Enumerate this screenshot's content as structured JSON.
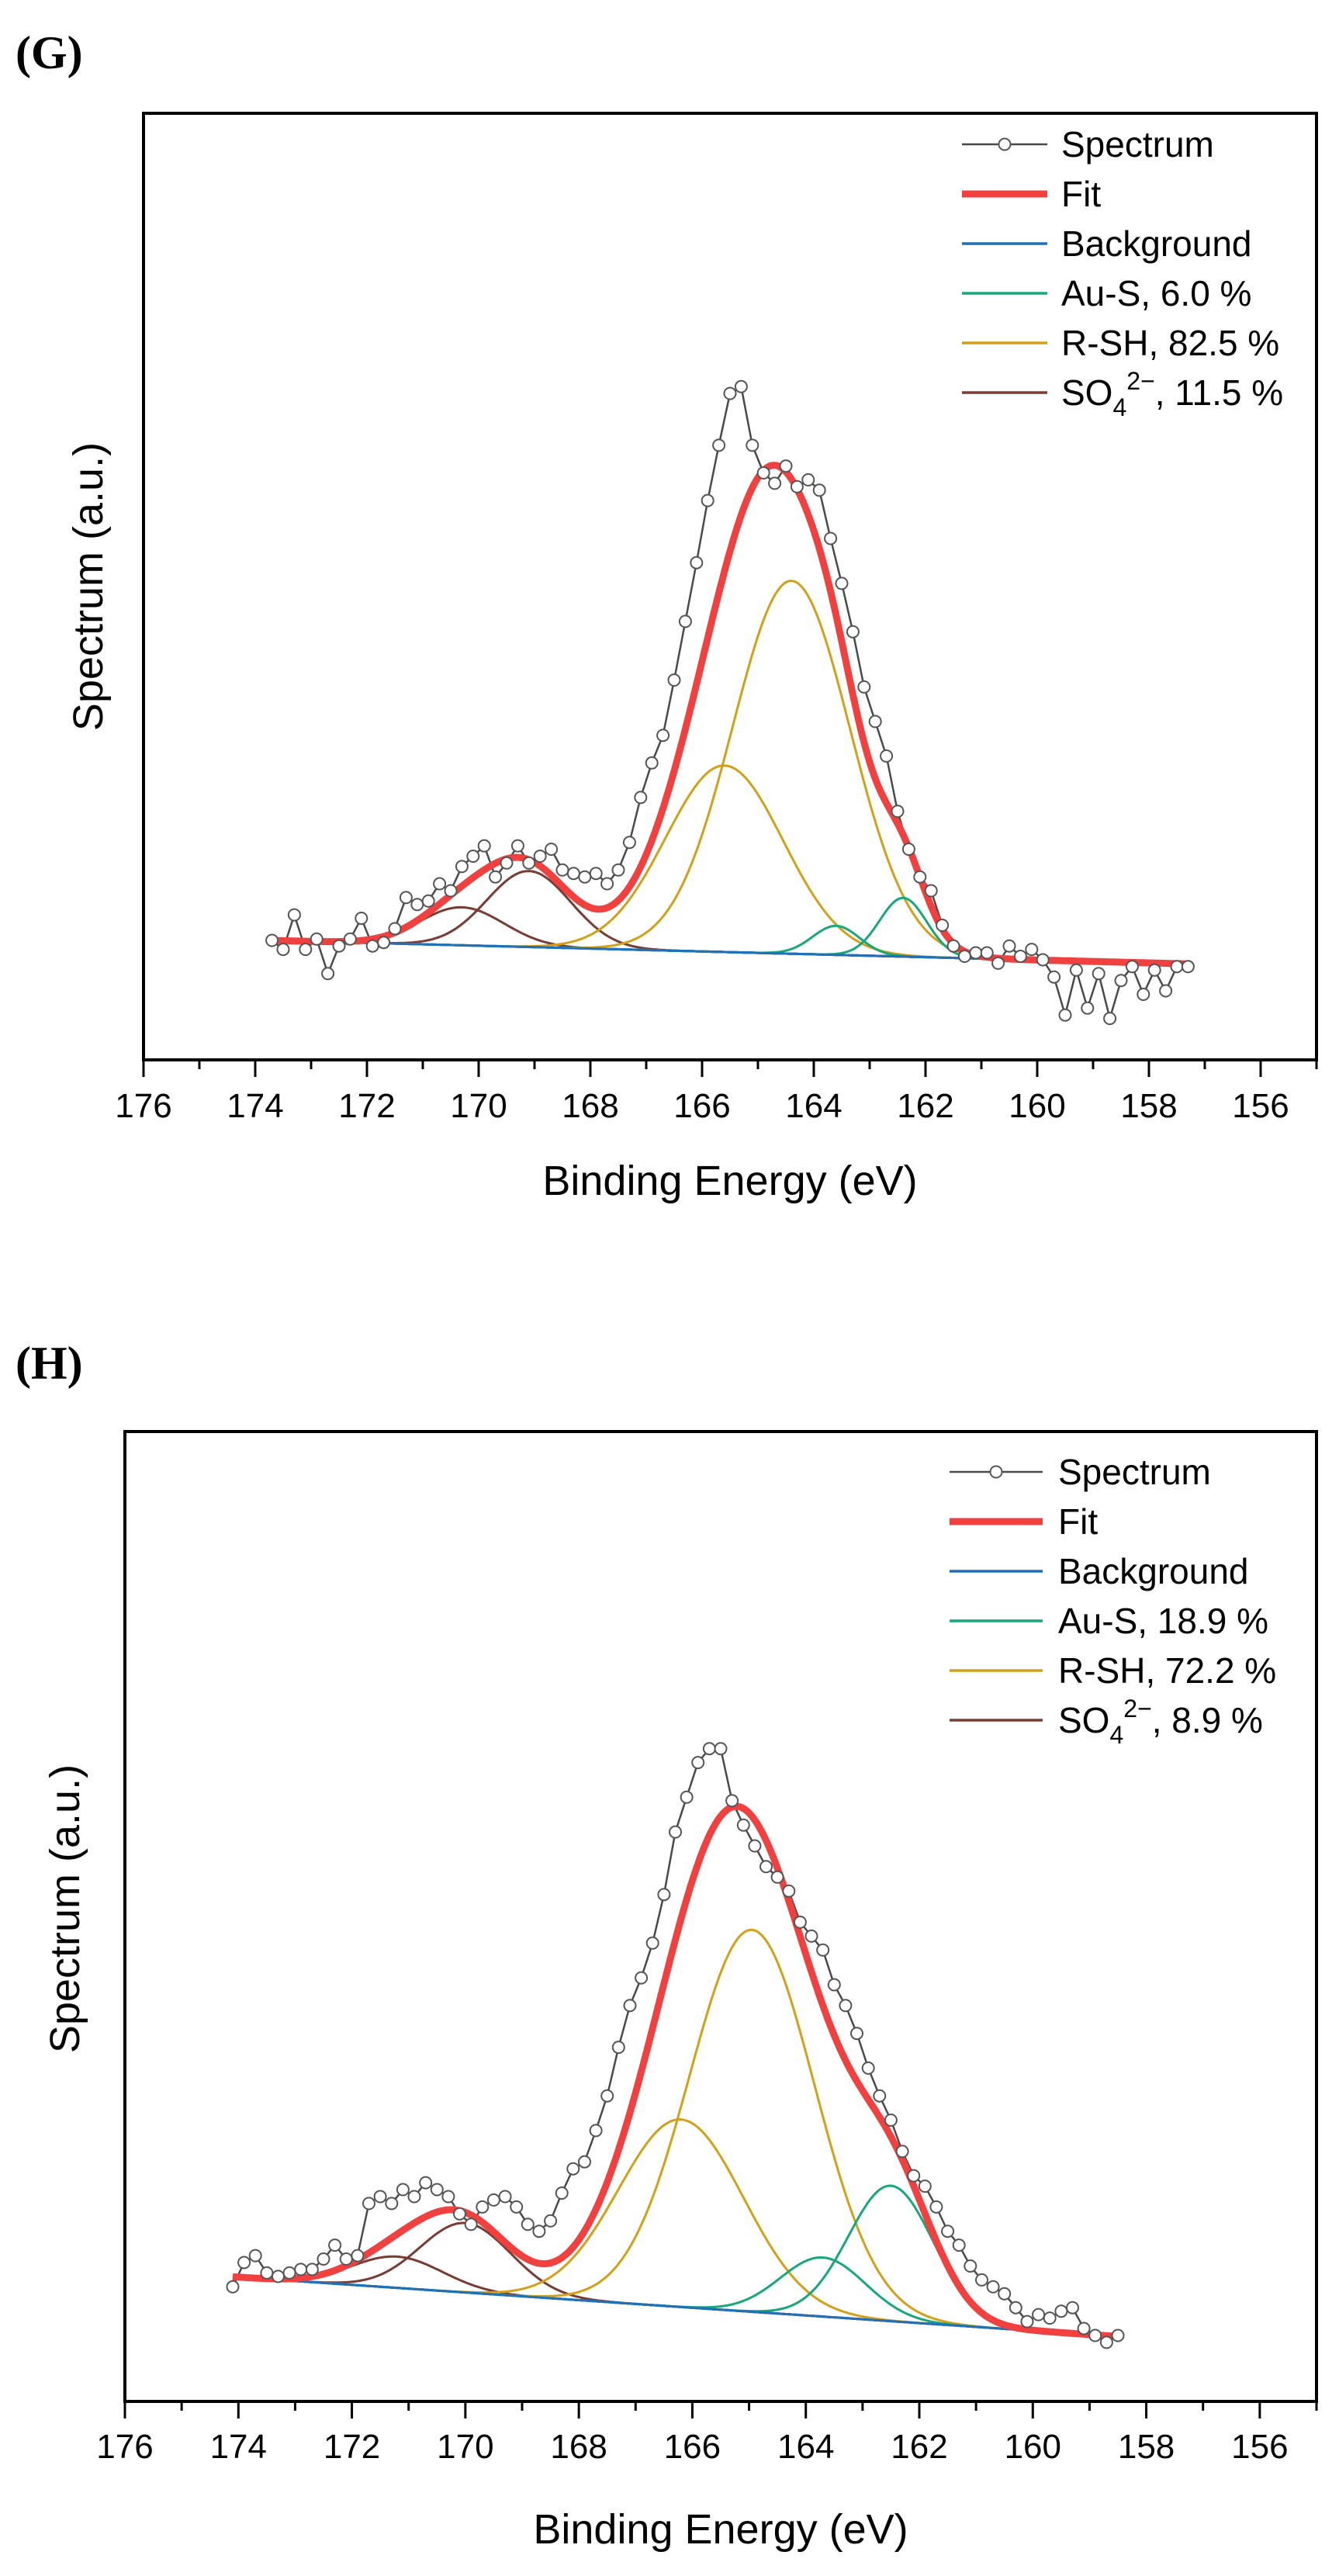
{
  "chart_data": [
    {
      "panel": "(G)",
      "type": "line",
      "xlabel": "Binding Energy (eV)",
      "ylabel": "Spectrum (a.u.)",
      "xlim": [
        176,
        155
      ],
      "ylim": [
        0,
        100
      ],
      "x_ticks": [
        176,
        174,
        172,
        170,
        168,
        166,
        164,
        162,
        160,
        158,
        156
      ],
      "legend": [
        {
          "label": "Spectrum",
          "color": "#4a4a4a",
          "style": "line-marker"
        },
        {
          "label": "Fit",
          "color": "#f04040",
          "style": "thick"
        },
        {
          "label": "Background",
          "color": "#1f6fbf",
          "style": "line"
        },
        {
          "label": "Au-S, 6.0 %",
          "color": "#16a87a",
          "style": "line"
        },
        {
          "label": "R-SH, 82.5 %",
          "color": "#d4a017",
          "style": "line"
        },
        {
          "label": "SO4 2−, 11.5 %",
          "main": "SO",
          "sub": "4",
          "sup": "2−",
          "tail": ", 11.5 %",
          "color": "#7a3b32",
          "style": "line"
        }
      ],
      "background": {
        "x": [
          173.7,
          157.3
        ],
        "y": [
          17.3,
          13.9
        ]
      },
      "components": [
        {
          "name": "Au-S 2p3/2",
          "color": "#16a87a",
          "center": 162.4,
          "amp": 8.5,
          "sigma": 0.42
        },
        {
          "name": "Au-S 2p1/2",
          "color": "#16a87a",
          "center": 163.6,
          "amp": 4.2,
          "sigma": 0.42
        },
        {
          "name": "R-SH 2p3/2",
          "color": "#d4a017",
          "center": 164.4,
          "amp": 54,
          "sigma": 1.05
        },
        {
          "name": "R-SH 2p1/2",
          "color": "#d4a017",
          "center": 165.6,
          "amp": 27,
          "sigma": 1.05
        },
        {
          "name": "SO4 a",
          "color": "#7a3b32",
          "center": 169.1,
          "amp": 11,
          "sigma": 0.75
        },
        {
          "name": "SO4 b",
          "color": "#7a3b32",
          "center": 170.3,
          "amp": 5.5,
          "sigma": 0.75
        }
      ],
      "spectrum": {
        "x": [
          173.7,
          173.5,
          173.3,
          173.1,
          172.9,
          172.7,
          172.5,
          172.3,
          172.1,
          171.9,
          171.7,
          171.5,
          171.3,
          171.1,
          170.9,
          170.7,
          170.5,
          170.3,
          170.1,
          169.9,
          169.7,
          169.5,
          169.3,
          169.1,
          168.9,
          168.7,
          168.5,
          168.3,
          168.1,
          167.9,
          167.7,
          167.5,
          167.3,
          167.1,
          166.9,
          166.7,
          166.5,
          166.3,
          166.1,
          165.9,
          165.7,
          165.5,
          165.3,
          165.1,
          164.9,
          164.7,
          164.5,
          164.3,
          164.1,
          163.9,
          163.7,
          163.5,
          163.3,
          163.1,
          162.9,
          162.7,
          162.5,
          162.3,
          162.1,
          161.9,
          161.7,
          161.5,
          161.3,
          161.1,
          160.9,
          160.7,
          160.5,
          160.3,
          160.1,
          159.9,
          159.7,
          159.5,
          159.3,
          159.1,
          158.9,
          158.7,
          158.5,
          158.3,
          158.1,
          157.9,
          157.7,
          157.5,
          157.3
        ],
        "y": [
          17.3,
          16.0,
          21.0,
          16.0,
          17.5,
          12.5,
          16.5,
          17.5,
          20.5,
          16.5,
          17.0,
          19.0,
          23.5,
          22.5,
          23.0,
          25.5,
          24.5,
          28.0,
          29.5,
          31.0,
          26.5,
          28.5,
          31.0,
          28.5,
          29.5,
          30.5,
          27.5,
          27.0,
          26.5,
          27.0,
          25.5,
          27.5,
          31.5,
          38.0,
          43.0,
          47.0,
          55.0,
          63.5,
          72.0,
          81.0,
          89.0,
          96.5,
          97.5,
          89.0,
          85.0,
          83.5,
          86.0,
          83.0,
          84.0,
          82.5,
          75.5,
          69.0,
          62.0,
          54.0,
          49.0,
          44.0,
          36.0,
          30.5,
          26.5,
          24.5,
          19.5,
          16.5,
          15.0,
          15.5,
          15.5,
          14.0,
          16.5,
          15.0,
          16.0,
          14.5,
          12.0,
          6.5,
          13.0,
          7.5,
          12.5,
          6.0,
          11.5,
          13.5,
          9.5,
          13.0,
          10.0,
          13.5,
          13.5
        ]
      }
    },
    {
      "panel": "(H)",
      "type": "line",
      "xlabel": "Binding Energy (eV)",
      "ylabel": "Spectrum (a.u.)",
      "xlim": [
        176,
        155
      ],
      "ylim": [
        0,
        100
      ],
      "x_ticks": [
        176,
        174,
        172,
        170,
        168,
        166,
        164,
        162,
        160,
        158,
        156
      ],
      "legend": [
        {
          "label": "Spectrum",
          "color": "#4a4a4a",
          "style": "line-marker"
        },
        {
          "label": "Fit",
          "color": "#f04040",
          "style": "thick"
        },
        {
          "label": "Background",
          "color": "#1f6fbf",
          "style": "line"
        },
        {
          "label": "Au-S, 18.9 %",
          "color": "#16a87a",
          "style": "line"
        },
        {
          "label": "R-SH, 72.2 %",
          "color": "#d4a017",
          "style": "line"
        },
        {
          "label": "SO4 2−, 8.9 %",
          "main": "SO",
          "sub": "4",
          "sup": "2−",
          "tail": ", 8.9 %",
          "color": "#7a3b32",
          "style": "line"
        }
      ],
      "background": {
        "x": [
          174.2,
          158.4
        ],
        "y": [
          18.0,
          9.3
        ]
      },
      "components": [
        {
          "name": "Au-S 2p3/2",
          "color": "#16a87a",
          "center": 162.5,
          "amp": 19.5,
          "sigma": 0.75
        },
        {
          "name": "Au-S 2p1/2",
          "color": "#16a87a",
          "center": 163.7,
          "amp": 8.5,
          "sigma": 0.75
        },
        {
          "name": "R-SH 2p3/2",
          "color": "#d4a017",
          "center": 164.95,
          "amp": 55,
          "sigma": 1.1
        },
        {
          "name": "R-SH 2p1/2",
          "color": "#d4a017",
          "center": 166.2,
          "amp": 27,
          "sigma": 1.1
        },
        {
          "name": "SO4 a",
          "color": "#7a3b32",
          "center": 170.0,
          "amp": 10,
          "sigma": 0.8
        },
        {
          "name": "SO4 b",
          "color": "#7a3b32",
          "center": 171.2,
          "amp": 4.5,
          "sigma": 0.8
        }
      ],
      "spectrum": {
        "x": [
          174.1,
          173.9,
          173.7,
          173.5,
          173.3,
          173.1,
          172.9,
          172.7,
          172.5,
          172.3,
          172.1,
          171.9,
          171.7,
          171.5,
          171.3,
          171.1,
          170.9,
          170.7,
          170.5,
          170.3,
          170.1,
          169.9,
          169.7,
          169.5,
          169.3,
          169.1,
          168.9,
          168.7,
          168.5,
          168.3,
          168.1,
          167.9,
          167.7,
          167.5,
          167.3,
          167.1,
          166.9,
          166.7,
          166.5,
          166.3,
          166.1,
          165.9,
          165.7,
          165.5,
          165.3,
          165.1,
          164.9,
          164.7,
          164.5,
          164.3,
          164.1,
          163.9,
          163.7,
          163.5,
          163.3,
          163.1,
          162.9,
          162.7,
          162.5,
          162.3,
          162.1,
          161.9,
          161.7,
          161.5,
          161.3,
          161.1,
          160.9,
          160.7,
          160.5,
          160.3,
          160.1,
          159.9,
          159.7,
          159.5,
          159.3,
          159.1,
          158.9,
          158.7,
          158.5
        ],
        "y": [
          16.5,
          20.0,
          21.0,
          18.5,
          18.0,
          18.5,
          19.0,
          19.0,
          20.5,
          22.5,
          20.5,
          21.0,
          28.5,
          29.5,
          28.5,
          30.5,
          29.5,
          31.5,
          30.5,
          29.5,
          27.0,
          25.5,
          28.0,
          29.0,
          29.5,
          28.0,
          25.5,
          24.5,
          26.0,
          30.0,
          33.5,
          34.5,
          39.0,
          44.0,
          51.0,
          57.0,
          61.0,
          66.0,
          73.0,
          82.0,
          87.0,
          92.0,
          94.0,
          94.0,
          86.5,
          83.0,
          80.0,
          77.0,
          75.5,
          73.5,
          69.0,
          67.0,
          65.0,
          60.0,
          57.0,
          53.0,
          48.0,
          44.0,
          40.5,
          36.0,
          32.5,
          31.0,
          28.0,
          24.5,
          22.5,
          19.5,
          17.5,
          16.5,
          15.5,
          13.5,
          11.5,
          12.5,
          12.0,
          13.0,
          13.5,
          10.5,
          9.5,
          8.5,
          9.5
        ]
      }
    }
  ]
}
